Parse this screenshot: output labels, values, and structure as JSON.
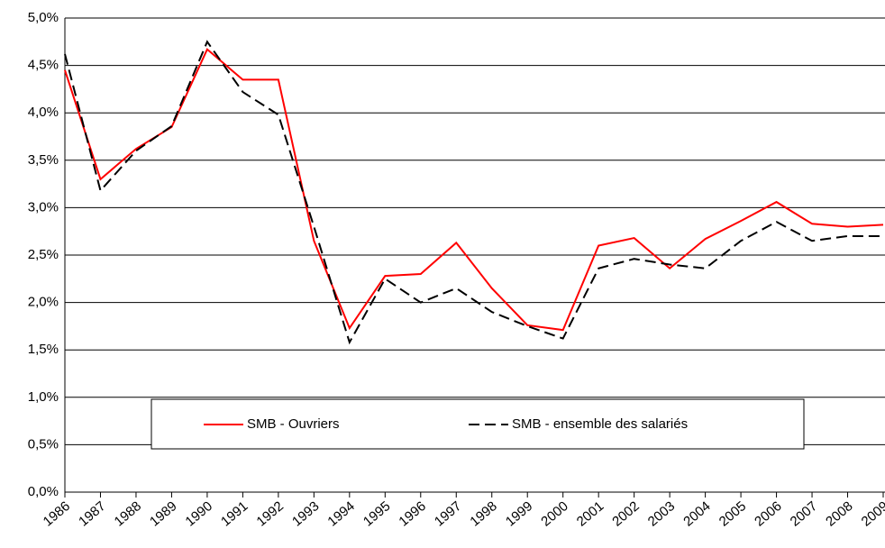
{
  "chart_data": {
    "type": "line",
    "categories": [
      "1986",
      "1987",
      "1988",
      "1989",
      "1990",
      "1991",
      "1992",
      "1993",
      "1994",
      "1995",
      "1996",
      "1997",
      "1998",
      "1999",
      "2000",
      "2001",
      "2002",
      "2003",
      "2004",
      "2005",
      "2006",
      "2007",
      "2008",
      "2009"
    ],
    "series": [
      {
        "name": "SMB - Ouvriers",
        "color": "#ff0000",
        "style": "solid",
        "values": [
          4.45,
          3.3,
          3.62,
          3.85,
          4.67,
          4.35,
          4.35,
          2.65,
          1.73,
          2.28,
          2.3,
          2.63,
          2.15,
          1.76,
          1.71,
          2.6,
          2.68,
          2.36,
          2.67,
          2.86,
          3.06,
          2.83,
          2.8,
          2.82
        ]
      },
      {
        "name": "SMB - ensemble des salariés",
        "color": "#000000",
        "style": "dashed",
        "values": [
          4.62,
          3.18,
          3.6,
          3.86,
          4.75,
          4.22,
          3.98,
          2.8,
          1.58,
          2.25,
          2.0,
          2.15,
          1.9,
          1.75,
          1.62,
          2.36,
          2.46,
          2.4,
          2.36,
          2.65,
          2.85,
          2.65,
          2.7,
          2.7
        ]
      }
    ],
    "ylim": [
      0,
      5
    ],
    "yticks": [
      {
        "value": 0,
        "label": "0,0%"
      },
      {
        "value": 0.5,
        "label": "0,5%"
      },
      {
        "value": 1,
        "label": "1,0%"
      },
      {
        "value": 1.5,
        "label": "1,5%"
      },
      {
        "value": 2,
        "label": "2,0%"
      },
      {
        "value": 2.5,
        "label": "2,5%"
      },
      {
        "value": 3,
        "label": "3,0%"
      },
      {
        "value": 3.5,
        "label": "3,5%"
      },
      {
        "value": 4,
        "label": "4,0%"
      },
      {
        "value": 4.5,
        "label": "4,5%"
      },
      {
        "value": 5,
        "label": "5,0%"
      }
    ],
    "grid": true
  }
}
